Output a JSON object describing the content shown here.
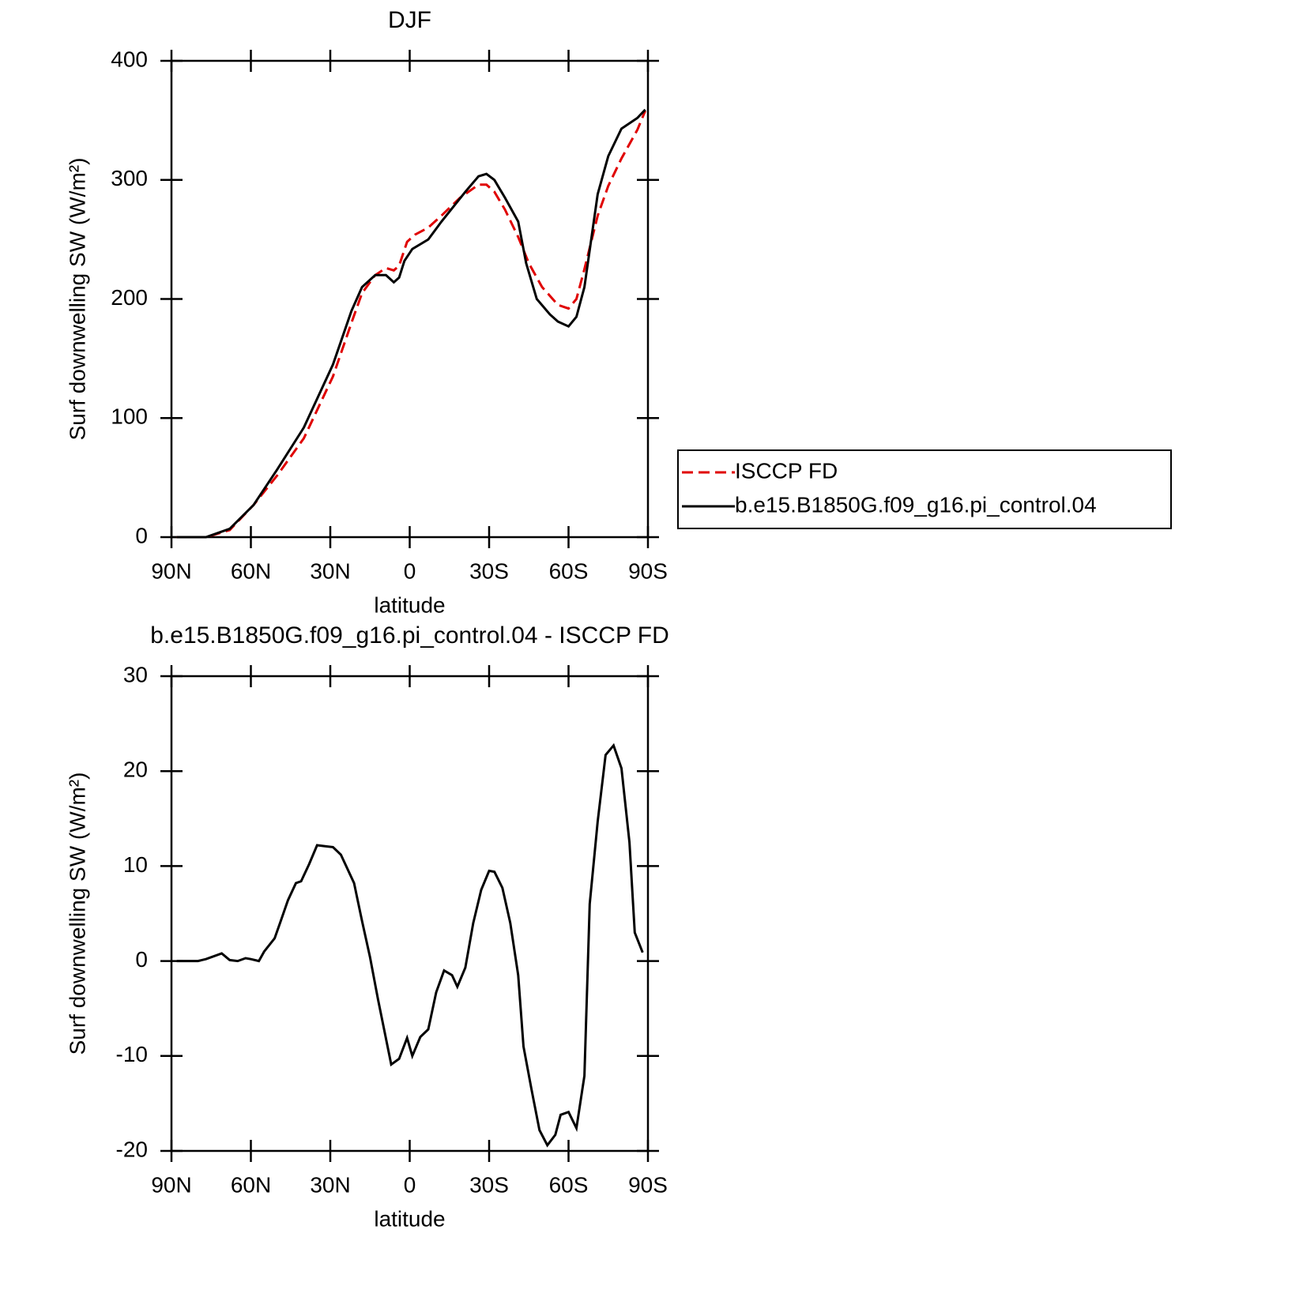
{
  "chart_data": [
    {
      "type": "line",
      "title": "DJF",
      "x_label": "latitude",
      "y_label": "Surf downwelling SW (W/m²)",
      "xlim": [
        90,
        -90
      ],
      "ylim": [
        0,
        400
      ],
      "xticks": [
        {
          "value": 90,
          "label": "90N"
        },
        {
          "value": 60,
          "label": "60N"
        },
        {
          "value": 30,
          "label": "30N"
        },
        0,
        {
          "value": -30,
          "label": "30S"
        },
        {
          "value": -60,
          "label": "60S"
        },
        {
          "value": -90,
          "label": "90S"
        }
      ],
      "yticks": [
        0,
        100,
        200,
        300,
        400
      ],
      "legend": "right",
      "series": [
        {
          "name": "ISCCP FD",
          "color": "#e00000",
          "dashed": true,
          "x": [
            88,
            77,
            68,
            59,
            50,
            40,
            29,
            22,
            18,
            13,
            9,
            6,
            4,
            1,
            -2,
            -7,
            -12,
            -19,
            -26,
            -29,
            -32,
            -36,
            -41,
            -45,
            -50,
            -56,
            -60,
            -63,
            -66,
            -71,
            -75,
            -80,
            -86,
            -89
          ],
          "values": [
            0,
            0,
            6,
            27,
            52,
            83,
            135,
            180,
            205,
            220,
            226,
            224,
            228,
            248,
            254,
            260,
            270,
            285,
            296,
            296,
            290,
            275,
            252,
            230,
            210,
            195,
            192,
            200,
            225,
            270,
            295,
            318,
            342,
            358
          ]
        },
        {
          "name": "b.e15.B1850G.f09_g16.pi_control.04",
          "color": "#000000",
          "dashed": false,
          "x": [
            88,
            77,
            68,
            59,
            50,
            40,
            29,
            22,
            18,
            13,
            9,
            6,
            4,
            2,
            -1,
            -7,
            -12,
            -21,
            -26,
            -29,
            -32,
            -36,
            -41,
            -44,
            -48,
            -53,
            -56,
            -60,
            -63,
            -66,
            -71,
            -75,
            -80,
            -86,
            -89
          ],
          "values": [
            0,
            0,
            7,
            27,
            57,
            92,
            145,
            190,
            210,
            220,
            220,
            214,
            218,
            232,
            242,
            250,
            265,
            290,
            303,
            305,
            300,
            285,
            265,
            230,
            200,
            187,
            181,
            177,
            185,
            210,
            288,
            320,
            343,
            352,
            359
          ]
        }
      ]
    },
    {
      "type": "line",
      "title": "b.e15.B1850G.f09_g16.pi_control.04 - ISCCP FD",
      "x_label": "latitude",
      "y_label": "Surf downwelling SW (W/m²)",
      "xlim": [
        90,
        -90
      ],
      "ylim": [
        -20,
        30
      ],
      "xticks": [
        {
          "value": 90,
          "label": "90N"
        },
        {
          "value": 60,
          "label": "60N"
        },
        {
          "value": 30,
          "label": "30N"
        },
        0,
        {
          "value": -30,
          "label": "30S"
        },
        {
          "value": -60,
          "label": "60S"
        },
        {
          "value": -90,
          "label": "90S"
        }
      ],
      "yticks": [
        -20,
        -10,
        0,
        10,
        20,
        30
      ],
      "series": [
        {
          "color": "#000000",
          "dashed": false,
          "x": [
            88,
            80,
            77,
            71,
            68,
            65,
            62,
            60,
            57,
            55,
            51,
            49,
            46,
            43,
            41,
            38,
            35,
            32,
            29,
            26,
            21,
            18,
            15,
            12,
            7,
            4,
            1,
            -1,
            -4,
            -7,
            -10,
            -13,
            -16,
            -18,
            -21,
            -24,
            -27,
            -30,
            -32,
            -35,
            -38,
            -41,
            -43,
            -46,
            -49,
            -52,
            -55,
            -57,
            -60,
            -63,
            -66,
            -68,
            -71,
            -74,
            -77,
            -80,
            -83,
            -85,
            -88
          ],
          "values": [
            0,
            0,
            0.2,
            0.8,
            0.1,
            0,
            0.3,
            0.2,
            0,
            1,
            2.4,
            4,
            6.4,
            8.2,
            8.4,
            10.2,
            12.2,
            12.1,
            12,
            11.2,
            8.2,
            4.2,
            0.4,
            -4,
            -10.9,
            -10.3,
            -8.1,
            -10,
            -8,
            -7.2,
            -3.3,
            -1,
            -1.5,
            -2.7,
            -0.7,
            4,
            7.5,
            9.5,
            9.4,
            7.7,
            4,
            -1.5,
            -9,
            -13.5,
            -17.8,
            -19.4,
            -18.3,
            -16.2,
            -15.9,
            -17.6,
            -12.1,
            6,
            14.7,
            21.7,
            22.7,
            20.3,
            12.5,
            3,
            0.9
          ]
        }
      ]
    }
  ]
}
